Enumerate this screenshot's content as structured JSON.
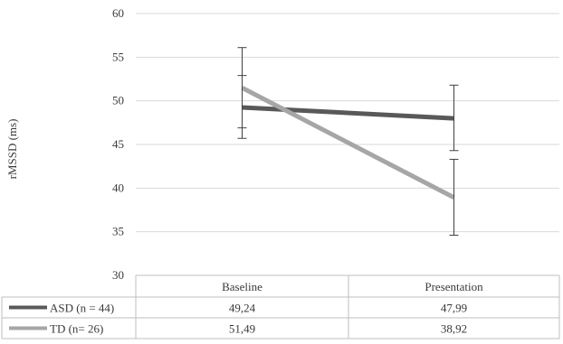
{
  "chart_data": {
    "type": "line",
    "categories": [
      "Baseline",
      "Presentation"
    ],
    "ylabel": "rMSSD (ms)",
    "xlabel": "",
    "title": "",
    "ylim": [
      30,
      60
    ],
    "yticks": [
      "30",
      "35",
      "40",
      "45",
      "50",
      "55",
      "60"
    ],
    "grid": true,
    "legend": "data-table",
    "series": [
      {
        "name": "ASD (n = 44)",
        "values": [
          49.24,
          47.99
        ],
        "value_labels": [
          "49,24",
          "47,99"
        ],
        "error_low": [
          45.7,
          44.3
        ],
        "error_high": [
          52.9,
          51.8
        ],
        "color": "#595959"
      },
      {
        "name": "TD (n= 26)",
        "values": [
          51.49,
          38.92
        ],
        "value_labels": [
          "51,49",
          "38,92"
        ],
        "error_low": [
          46.9,
          34.6
        ],
        "error_high": [
          56.1,
          43.3
        ],
        "color": "#a6a6a6"
      }
    ]
  }
}
